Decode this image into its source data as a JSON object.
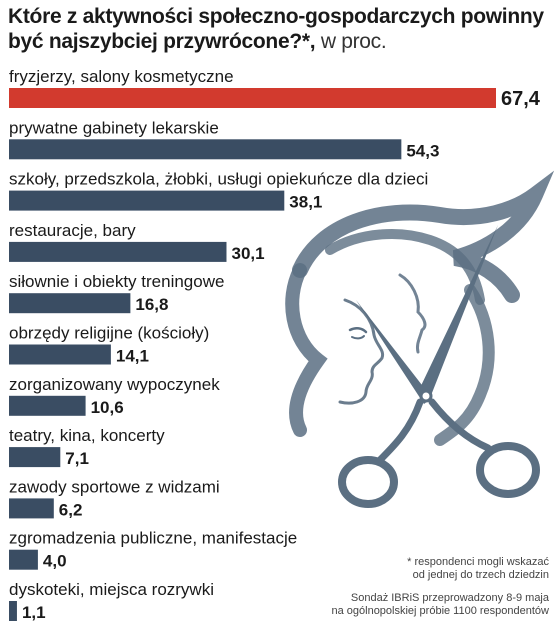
{
  "title": {
    "main": "Które z aktywności społeczno-gospodarczych powinny być najszybciej przywrócone?*,",
    "unit": " w proc."
  },
  "footnote": {
    "line1": "* respondenci mogli wskazać",
    "line2": "od jednej do trzech dziedzin"
  },
  "source": {
    "line1": "Sondaż IBRiS przeprowadzony 8-9 maja",
    "line2": "na ogólnopolskiej próbie 1100 respondentów"
  },
  "illustration": {
    "icon": "scissors-and-faces-icon"
  },
  "colors": {
    "highlight_bar": "#d23a2e",
    "highlight_value": "#d23a2e",
    "bar": "#3a4d63",
    "illustration": "#5b6f82"
  },
  "chart_data": {
    "type": "bar",
    "orientation": "horizontal",
    "categories": [
      "fryzjerzy, salony kosmetyczne",
      "prywatne gabinety lekarskie",
      "szkoły, przedszkola, żłobki, usługi opiekuńcze dla dzieci",
      "restauracje, bary",
      "siłownie i obiekty treningowe",
      "obrzędy religijne (kościoły)",
      "zorganizowany wypoczynek",
      "teatry, kina, koncerty",
      "zawody sportowe z widzami",
      "zgromadzenia publiczne, manifestacje",
      "dyskoteki, miejsca rozrywki"
    ],
    "values": [
      67.4,
      54.3,
      38.1,
      30.1,
      16.8,
      14.1,
      10.6,
      7.1,
      6.2,
      4.0,
      1.1
    ],
    "value_labels": [
      "67,4",
      "54,3",
      "38,1",
      "30,1",
      "16,8",
      "14,1",
      "10,6",
      "7,1",
      "6,2",
      "4,0",
      "1,1"
    ],
    "highlight_index": 0,
    "xlim": [
      0,
      67.4
    ],
    "grid": false,
    "legend": "none",
    "xlabel": "",
    "ylabel": ""
  }
}
